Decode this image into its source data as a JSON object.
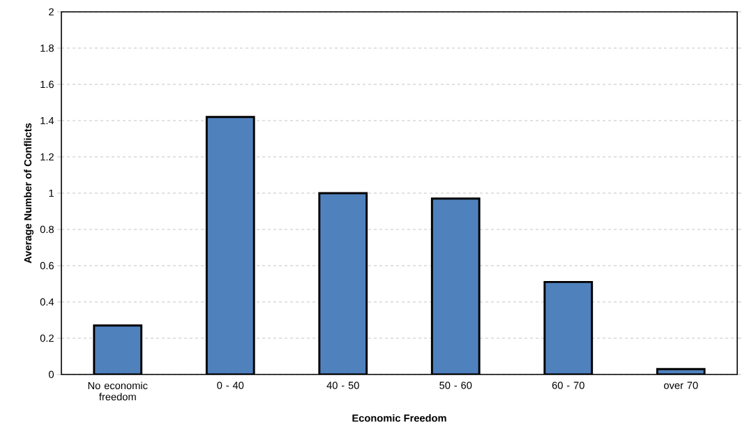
{
  "chart_data": {
    "type": "bar",
    "xlabel": "Economic Freedom",
    "ylabel": "Average Number of Conflicts",
    "categories": [
      "No economic freedom",
      "0 - 40",
      "40 - 50",
      "50 - 60",
      "60 - 70",
      "over 70"
    ],
    "values": [
      0.27,
      1.42,
      1.0,
      0.97,
      0.51,
      0.03
    ],
    "color": "#4f81bd",
    "ylim": [
      0,
      2
    ],
    "yticks": [
      0,
      0.2,
      0.4,
      0.6,
      0.8,
      1,
      1.2,
      1.4,
      1.6,
      1.8,
      2
    ],
    "grid": "y"
  }
}
